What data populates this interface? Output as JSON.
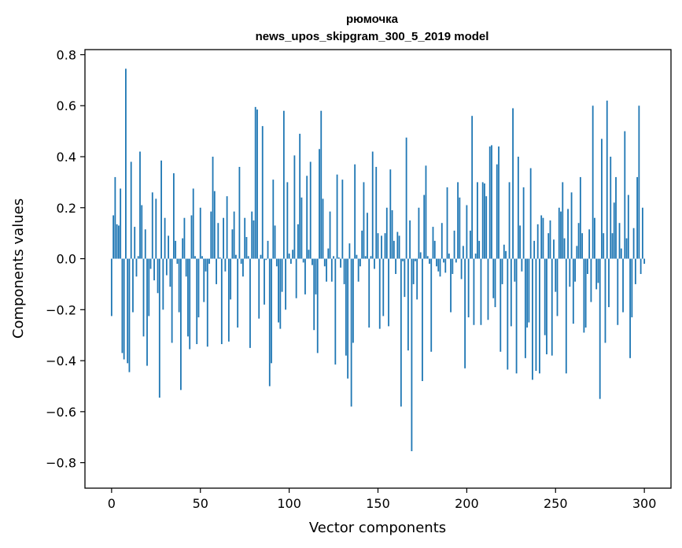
{
  "chart_data": {
    "type": "bar",
    "title": "рюмочка",
    "subtitle": "news_upos_skipgram_300_5_2019 model",
    "xlabel": "Vector components",
    "ylabel": "Components values",
    "xlim": [
      -15,
      315
    ],
    "ylim": [
      -0.9,
      0.82
    ],
    "x_ticks": [
      0,
      50,
      100,
      150,
      200,
      250,
      300
    ],
    "y_ticks": [
      -0.8,
      -0.6,
      -0.4,
      -0.2,
      0.0,
      0.2,
      0.4,
      0.6,
      0.8
    ],
    "y_tick_labels": [
      "−0.8",
      "−0.6",
      "−0.4",
      "−0.2",
      "0.0",
      "0.2",
      "0.4",
      "0.6",
      "0.8"
    ],
    "x_tick_labels": [
      "0",
      "50",
      "100",
      "150",
      "200",
      "250",
      "300"
    ],
    "bar_color": "#1f77b4",
    "grid": false,
    "values": [
      -0.225,
      0.17,
      0.32,
      0.135,
      0.13,
      0.275,
      -0.37,
      -0.395,
      0.745,
      -0.41,
      -0.445,
      0.38,
      -0.21,
      0.125,
      -0.07,
      0.01,
      0.42,
      0.21,
      -0.305,
      0.115,
      -0.42,
      -0.225,
      -0.04,
      0.26,
      -0.085,
      0.235,
      -0.135,
      -0.545,
      0.385,
      -0.2,
      0.16,
      -0.065,
      0.09,
      -0.11,
      -0.33,
      0.335,
      0.07,
      -0.02,
      -0.21,
      -0.515,
      0.08,
      0.16,
      -0.07,
      -0.305,
      -0.355,
      0.17,
      0.275,
      0.01,
      -0.335,
      -0.23,
      0.2,
      0.01,
      -0.17,
      -0.05,
      -0.345,
      -0.02,
      0.185,
      0.4,
      0.265,
      -0.1,
      0.14,
      0.005,
      -0.335,
      0.16,
      -0.05,
      0.245,
      -0.325,
      -0.16,
      0.115,
      0.185,
      0.015,
      -0.27,
      0.36,
      -0.02,
      -0.07,
      0.16,
      0.085,
      0.01,
      -0.35,
      0.185,
      0.15,
      0.595,
      0.585,
      -0.235,
      0.015,
      0.52,
      -0.18,
      -0.005,
      0.07,
      -0.5,
      -0.41,
      0.31,
      0.13,
      -0.03,
      -0.25,
      -0.275,
      -0.13,
      0.58,
      -0.2,
      0.3,
      0.02,
      -0.02,
      0.035,
      0.405,
      -0.155,
      0.135,
      0.49,
      0.24,
      -0.015,
      -0.14,
      0.325,
      0.035,
      0.38,
      -0.025,
      -0.28,
      -0.14,
      -0.37,
      0.43,
      0.58,
      0.235,
      -0.03,
      -0.09,
      0.04,
      0.185,
      -0.09,
      0.01,
      -0.415,
      0.33,
      0.005,
      -0.035,
      0.31,
      -0.1,
      -0.38,
      -0.47,
      0.06,
      -0.58,
      -0.33,
      0.37,
      0.015,
      -0.09,
      -0.03,
      0.11,
      0.3,
      0.01,
      0.18,
      -0.27,
      0.01,
      0.42,
      -0.04,
      0.36,
      0.1,
      -0.275,
      0.09,
      -0.225,
      0.1,
      0.2,
      -0.265,
      0.35,
      0.19,
      0.07,
      -0.06,
      0.105,
      0.09,
      -0.58,
      -0.01,
      -0.15,
      0.475,
      -0.36,
      0.15,
      -0.755,
      -0.1,
      -0.01,
      -0.16,
      0.2,
      0.025,
      -0.48,
      0.25,
      0.365,
      0.01,
      -0.02,
      -0.365,
      0.125,
      0.07,
      -0.03,
      -0.05,
      -0.07,
      0.14,
      -0.015,
      -0.055,
      0.28,
      0.02,
      -0.21,
      -0.06,
      0.11,
      -0.015,
      0.3,
      0.24,
      -0.08,
      0.05,
      -0.43,
      0.21,
      -0.23,
      0.11,
      0.56,
      -0.26,
      0.02,
      0.3,
      0.07,
      -0.26,
      0.3,
      0.295,
      0.245,
      -0.24,
      0.44,
      0.445,
      -0.155,
      -0.19,
      0.37,
      0.44,
      -0.365,
      -0.1,
      0.055,
      0.03,
      -0.435,
      0.3,
      -0.265,
      0.59,
      -0.09,
      -0.45,
      0.4,
      0.13,
      -0.05,
      0.28,
      -0.39,
      -0.27,
      -0.25,
      0.355,
      -0.475,
      0.07,
      -0.44,
      0.135,
      -0.45,
      0.17,
      0.16,
      -0.3,
      -0.375,
      0.1,
      0.15,
      -0.38,
      0.075,
      -0.13,
      -0.225,
      0.2,
      0.185,
      0.3,
      0.08,
      -0.45,
      0.195,
      -0.11,
      0.26,
      -0.255,
      -0.09,
      0.05,
      0.14,
      0.32,
      0.1,
      -0.29,
      -0.27,
      -0.06,
      0.115,
      -0.17,
      0.6,
      0.16,
      -0.12,
      -0.095,
      -0.55,
      0.47,
      0.1,
      -0.33,
      0.62,
      -0.19,
      0.4,
      0.1,
      0.22,
      0.32,
      -0.26,
      0.14,
      0.04,
      -0.21,
      0.5,
      0.08,
      0.25,
      -0.39,
      -0.23,
      0.12,
      -0.1,
      0.32,
      0.6,
      -0.06,
      0.2,
      -0.02
    ]
  }
}
